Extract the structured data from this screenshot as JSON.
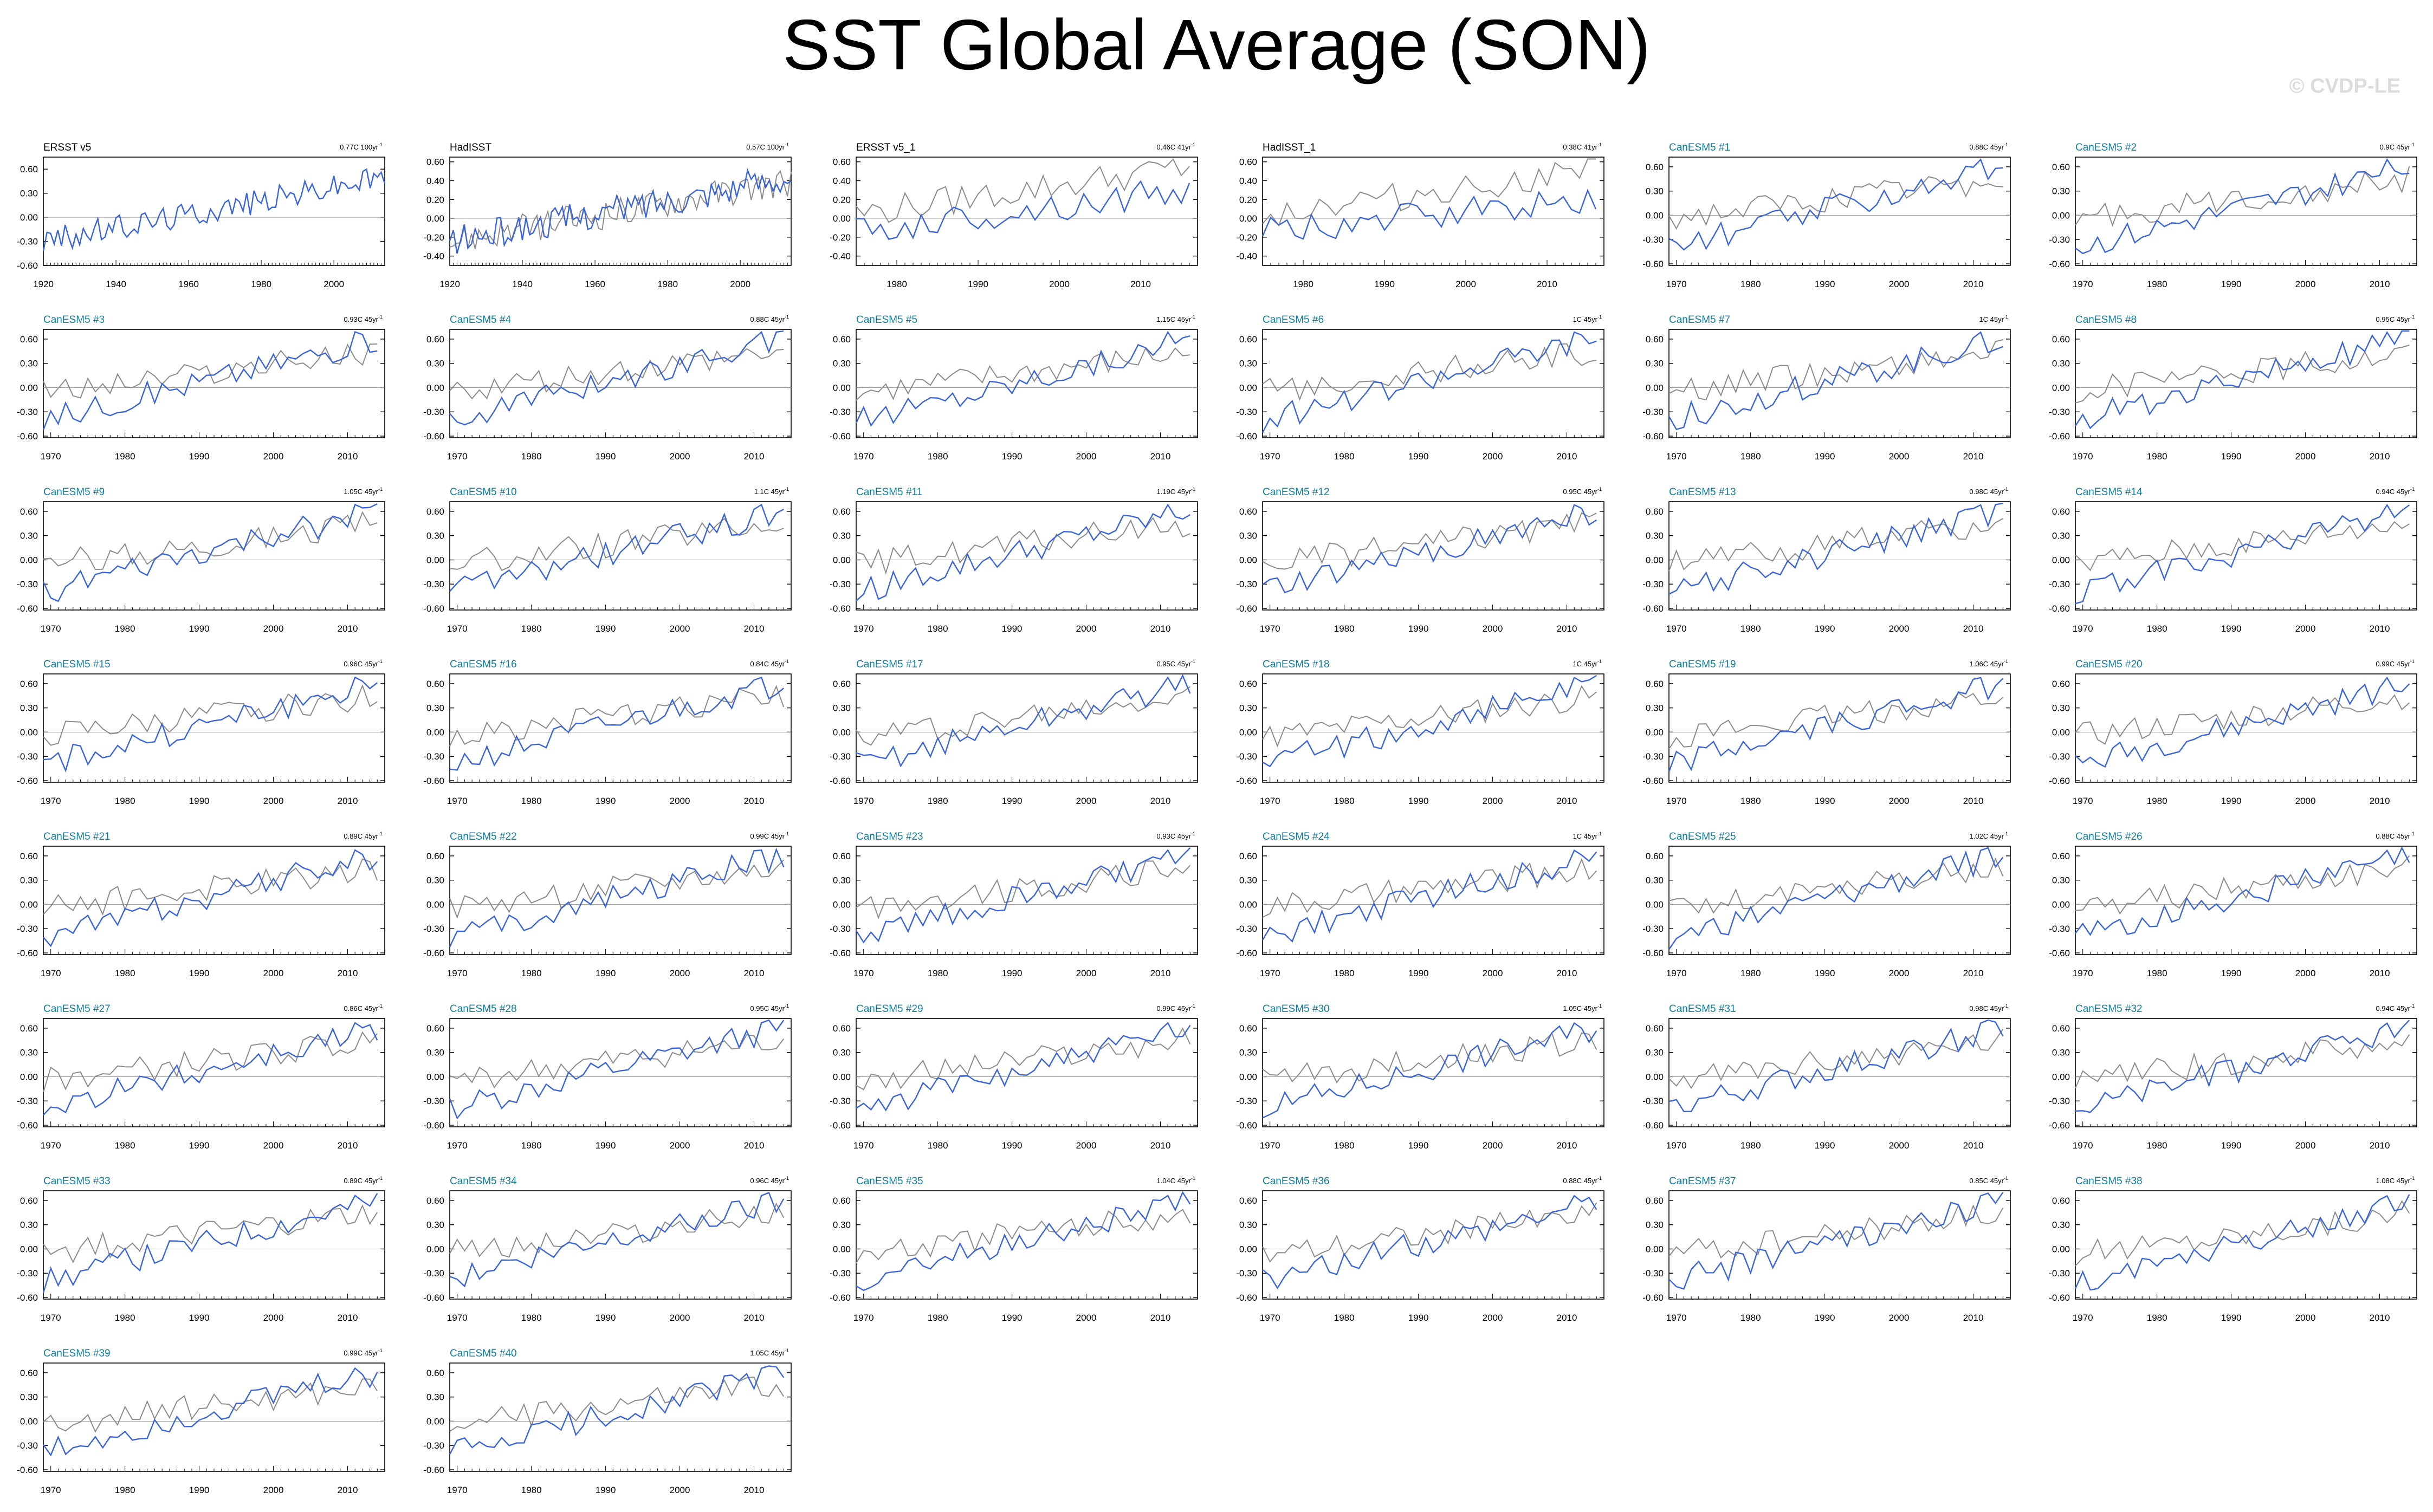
{
  "figure": {
    "title": "SST Global Average (SON)",
    "watermark": "© CVDP-LE",
    "colors": {
      "obs": "#000000",
      "model": "#0f7fa0",
      "blue_line": "#3a64d8",
      "gray_line": "#8c8c8c",
      "axis": "#000000"
    }
  },
  "chart_data": [
    {
      "type": "line",
      "title": "ERSST v5",
      "trend": "0.77C 100yr",
      "trend_unit_exp": "-1",
      "title_color": "obs",
      "xlim": [
        1920,
        2014
      ],
      "xticks": [
        1920,
        1940,
        1960,
        1980,
        2000
      ],
      "ylim": [
        -0.6,
        0.75
      ],
      "yticks": [
        "0.60",
        "0.30",
        "0.00",
        "-0.30",
        "-0.60"
      ],
      "series": [
        {
          "color": "blue",
          "x_start": 1920,
          "x_end": 2014,
          "trend_start": -0.3,
          "trend_end": 0.5,
          "phase": 1
        }
      ]
    },
    {
      "type": "line",
      "title": "HadISST",
      "trend": "0.57C 100yr",
      "trend_unit_exp": "-1",
      "title_color": "obs",
      "xlim": [
        1920,
        2014
      ],
      "xticks": [
        1920,
        1940,
        1960,
        1980,
        2000
      ],
      "ylim": [
        -0.5,
        0.65
      ],
      "yticks": [
        "0.60",
        "0.40",
        "0.20",
        "0.00",
        "-0.20",
        "-0.40"
      ],
      "series": [
        {
          "color": "gray",
          "x_start": 1920,
          "x_end": 2014,
          "trend_start": -0.25,
          "trend_end": 0.4,
          "phase": 2
        },
        {
          "color": "blue",
          "x_start": 1920,
          "x_end": 2014,
          "trend_start": -0.25,
          "trend_end": 0.45,
          "phase": 3
        }
      ]
    },
    {
      "type": "line",
      "title": "ERSST v5_1",
      "trend": "0.46C 41yr",
      "trend_unit_exp": "-1",
      "title_color": "obs",
      "xlim": [
        1975,
        2017
      ],
      "xticks": [
        1980,
        1990,
        2000,
        2010
      ],
      "ylim": [
        -0.5,
        0.65
      ],
      "yticks": [
        "0.60",
        "0.40",
        "0.20",
        "0.00",
        "-0.20",
        "-0.40"
      ],
      "series": [
        {
          "color": "gray",
          "x_start": 1975,
          "x_end": 2016,
          "trend_start": 0.05,
          "trend_end": 0.55,
          "phase": 4
        },
        {
          "color": "blue",
          "x_start": 1975,
          "x_end": 2016,
          "trend_start": -0.15,
          "trend_end": 0.3,
          "phase": 5
        }
      ]
    },
    {
      "type": "line",
      "title": "HadISST_1",
      "trend": "0.38C 41yr",
      "trend_unit_exp": "-1",
      "title_color": "obs",
      "xlim": [
        1975,
        2017
      ],
      "xticks": [
        1980,
        1990,
        2000,
        2010
      ],
      "ylim": [
        -0.5,
        0.65
      ],
      "yticks": [
        "0.60",
        "0.40",
        "0.20",
        "0.00",
        "-0.20",
        "-0.40"
      ],
      "series": [
        {
          "color": "gray",
          "x_start": 1975,
          "x_end": 2016,
          "trend_start": 0.05,
          "trend_end": 0.5,
          "phase": 6
        },
        {
          "color": "blue",
          "x_start": 1975,
          "x_end": 2016,
          "trend_start": -0.15,
          "trend_end": 0.2,
          "phase": 7
        }
      ]
    },
    {
      "title": "CanESM5 #1",
      "trend": "0.88C 45yr"
    },
    {
      "title": "CanESM5 #2",
      "trend": "0.9C 45yr"
    },
    {
      "title": "CanESM5 #3",
      "trend": "0.93C 45yr"
    },
    {
      "title": "CanESM5 #4",
      "trend": "0.88C 45yr"
    },
    {
      "title": "CanESM5 #5",
      "trend": "1.15C 45yr"
    },
    {
      "title": "CanESM5 #6",
      "trend": "1C 45yr"
    },
    {
      "title": "CanESM5 #7",
      "trend": "1C 45yr"
    },
    {
      "title": "CanESM5 #8",
      "trend": "0.95C 45yr"
    },
    {
      "title": "CanESM5 #9",
      "trend": "1.05C 45yr"
    },
    {
      "title": "CanESM5 #10",
      "trend": "1.1C 45yr"
    },
    {
      "title": "CanESM5 #11",
      "trend": "1.19C 45yr"
    },
    {
      "title": "CanESM5 #12",
      "trend": "0.95C 45yr"
    },
    {
      "title": "CanESM5 #13",
      "trend": "0.98C 45yr"
    },
    {
      "title": "CanESM5 #14",
      "trend": "0.94C 45yr"
    },
    {
      "title": "CanESM5 #15",
      "trend": "0.96C 45yr"
    },
    {
      "title": "CanESM5 #16",
      "trend": "0.84C 45yr"
    },
    {
      "title": "CanESM5 #17",
      "trend": "0.95C 45yr"
    },
    {
      "title": "CanESM5 #18",
      "trend": "1C 45yr"
    },
    {
      "title": "CanESM5 #19",
      "trend": "1.06C 45yr"
    },
    {
      "title": "CanESM5 #20",
      "trend": "0.99C 45yr"
    },
    {
      "title": "CanESM5 #21",
      "trend": "0.89C 45yr"
    },
    {
      "title": "CanESM5 #22",
      "trend": "0.99C 45yr"
    },
    {
      "title": "CanESM5 #23",
      "trend": "0.93C 45yr"
    },
    {
      "title": "CanESM5 #24",
      "trend": "1C 45yr"
    },
    {
      "title": "CanESM5 #25",
      "trend": "1.02C 45yr"
    },
    {
      "title": "CanESM5 #26",
      "trend": "0.88C 45yr"
    },
    {
      "title": "CanESM5 #27",
      "trend": "0.86C 45yr"
    },
    {
      "title": "CanESM5 #28",
      "trend": "0.95C 45yr"
    },
    {
      "title": "CanESM5 #29",
      "trend": "0.99C 45yr"
    },
    {
      "title": "CanESM5 #30",
      "trend": "1.05C 45yr"
    },
    {
      "title": "CanESM5 #31",
      "trend": "0.98C 45yr"
    },
    {
      "title": "CanESM5 #32",
      "trend": "0.94C 45yr"
    },
    {
      "title": "CanESM5 #33",
      "trend": "0.89C 45yr"
    },
    {
      "title": "CanESM5 #34",
      "trend": "0.96C 45yr"
    },
    {
      "title": "CanESM5 #35",
      "trend": "1.04C 45yr"
    },
    {
      "title": "CanESM5 #36",
      "trend": "0.88C 45yr"
    },
    {
      "title": "CanESM5 #37",
      "trend": "0.85C 45yr"
    },
    {
      "title": "CanESM5 #38",
      "trend": "1.08C 45yr"
    },
    {
      "title": "CanESM5 #39",
      "trend": "0.99C 45yr"
    },
    {
      "title": "CanESM5 #40",
      "trend": "1.05C 45yr"
    }
  ],
  "model_defaults": {
    "type": "line",
    "title_color": "model",
    "trend_unit_exp": "-1",
    "xlim": [
      1969,
      2015
    ],
    "xticks": [
      1970,
      1980,
      1990,
      2000,
      2010
    ],
    "ylim": [
      -0.62,
      0.72
    ],
    "yticks": [
      "0.60",
      "0.30",
      "0.00",
      "-0.30",
      "-0.60"
    ],
    "series": [
      {
        "color": "gray",
        "x_start": 1969,
        "x_end": 2014,
        "trend_start": -0.05,
        "trend_end": 0.45
      },
      {
        "color": "blue",
        "x_start": 1969,
        "x_end": 2014,
        "trend_start": -0.4,
        "trend_end": 0.6
      }
    ]
  }
}
